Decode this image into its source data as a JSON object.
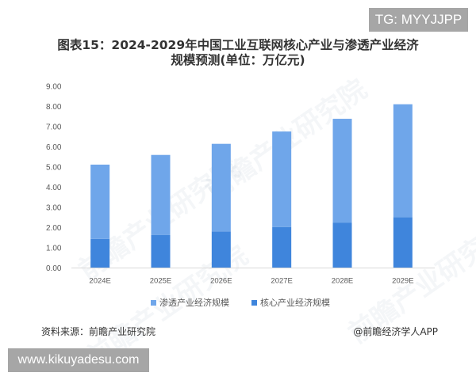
{
  "badges": {
    "tg": "TG: MYYJJPP",
    "site": "www.kikuyadesu.com"
  },
  "title": {
    "line1": "图表15：2024-2029年中国工业互联网核心产业与渗透产业经济",
    "line2": "规模预测(单位：万亿元)"
  },
  "watermark_text": "前瞻产业研究院",
  "footer": {
    "source": "资料来源：前瞻产业研究院",
    "credit": "@前瞻经济学人APP"
  },
  "colors": {
    "penetration": "#6fa6ea",
    "core": "#3f85dc",
    "axis": "#d9d9d9"
  },
  "chart_data": {
    "type": "bar",
    "stacked": true,
    "title": "图表15：2024-2029年中国工业互联网核心产业与渗透产业经济规模预测(单位：万亿元)",
    "xlabel": "",
    "ylabel": "",
    "ylim": [
      0,
      9
    ],
    "yticks": [
      "0.00",
      "1.00",
      "2.00",
      "3.00",
      "4.00",
      "5.00",
      "6.00",
      "7.00",
      "8.00",
      "9.00"
    ],
    "grid": false,
    "legend_position": "bottom",
    "categories": [
      "2024E",
      "2025E",
      "2026E",
      "2027E",
      "2028E",
      "2029E"
    ],
    "series": [
      {
        "name": "核心产业经济规模",
        "values": [
          1.44,
          1.64,
          1.81,
          2.03,
          2.25,
          2.52
        ],
        "color": "#3f85dc"
      },
      {
        "name": "渗透产业经济规模",
        "values": [
          3.68,
          3.96,
          4.34,
          4.73,
          5.14,
          5.59
        ],
        "color": "#6fa6ea"
      }
    ],
    "totals": [
      5.12,
      5.6,
      6.15,
      6.76,
      7.39,
      8.11
    ]
  },
  "legend": [
    {
      "label": "渗透产业经济规模",
      "color": "#6fa6ea"
    },
    {
      "label": "核心产业经济规模",
      "color": "#3f85dc"
    }
  ]
}
